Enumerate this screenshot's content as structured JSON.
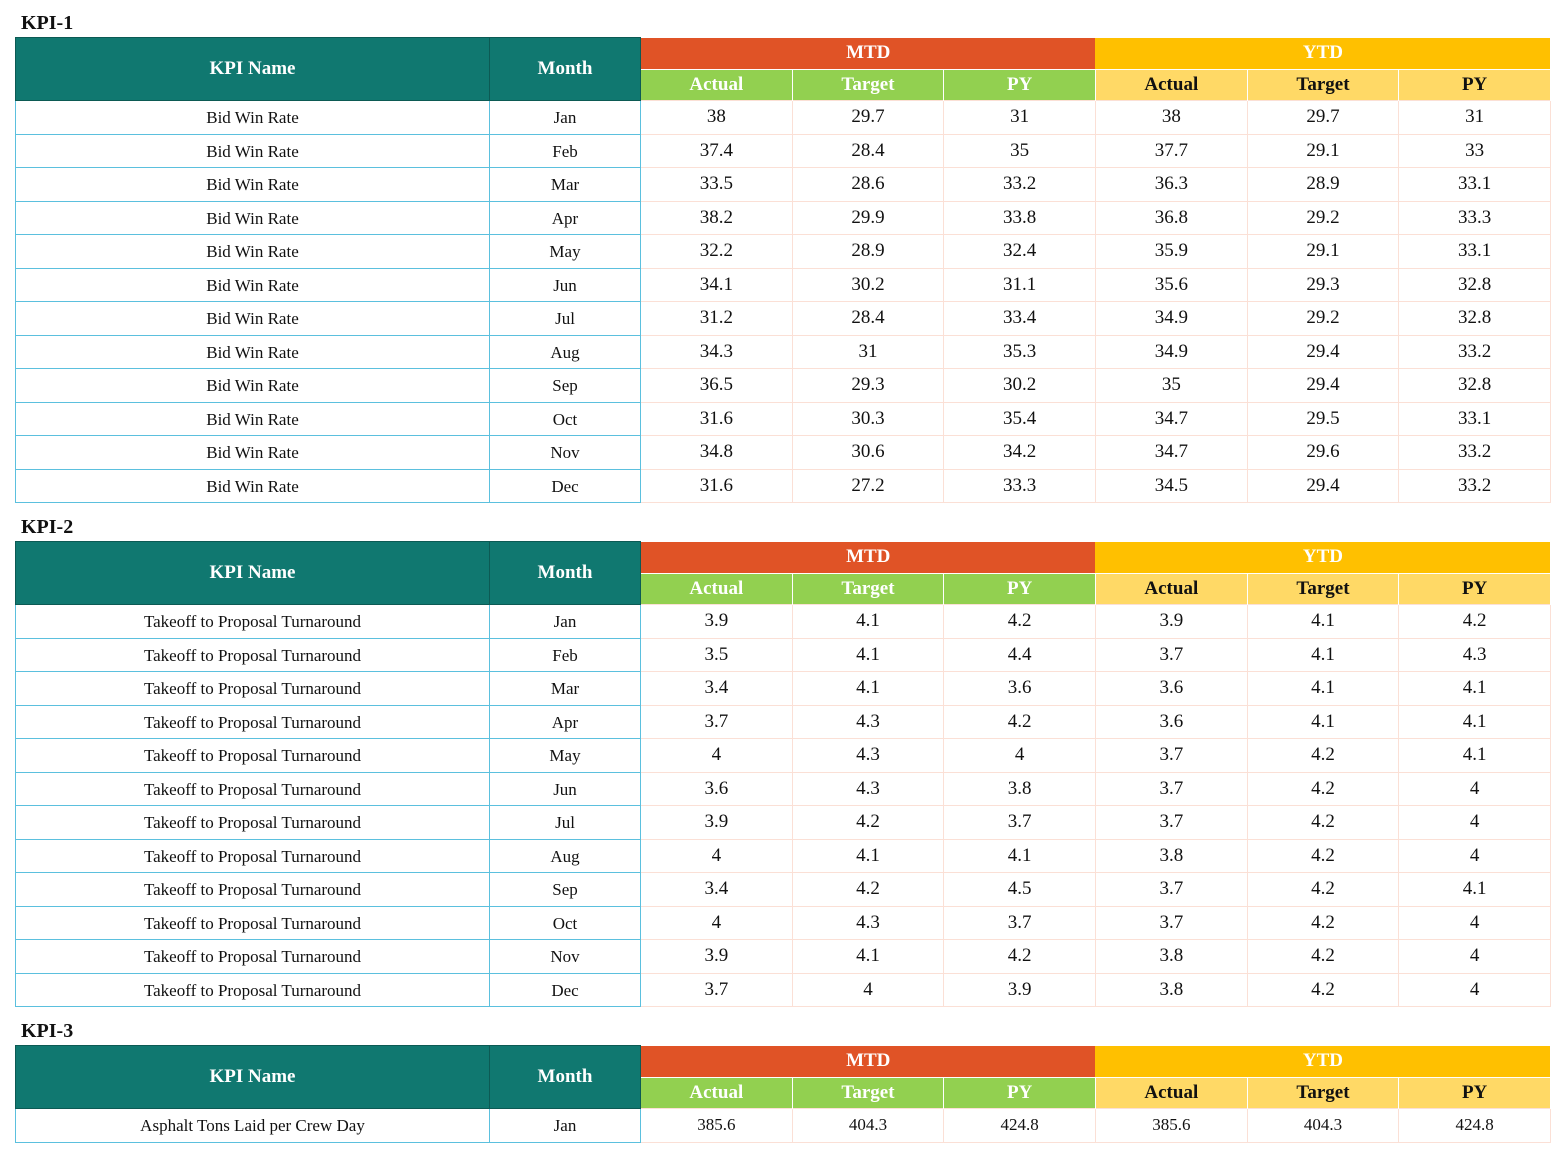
{
  "headers": {
    "kpi_name": "KPI Name",
    "month": "Month",
    "mtd": "MTD",
    "ytd": "YTD",
    "actual": "Actual",
    "target": "Target",
    "py": "PY"
  },
  "kpis": [
    {
      "title": "KPI-1",
      "rows": [
        {
          "name": "Bid Win Rate",
          "month": "Jan",
          "mtd_actual": "38",
          "mtd_target": "29.7",
          "mtd_py": "31",
          "ytd_actual": "38",
          "ytd_target": "29.7",
          "ytd_py": "31"
        },
        {
          "name": "Bid Win Rate",
          "month": "Feb",
          "mtd_actual": "37.4",
          "mtd_target": "28.4",
          "mtd_py": "35",
          "ytd_actual": "37.7",
          "ytd_target": "29.1",
          "ytd_py": "33"
        },
        {
          "name": "Bid Win Rate",
          "month": "Mar",
          "mtd_actual": "33.5",
          "mtd_target": "28.6",
          "mtd_py": "33.2",
          "ytd_actual": "36.3",
          "ytd_target": "28.9",
          "ytd_py": "33.1"
        },
        {
          "name": "Bid Win Rate",
          "month": "Apr",
          "mtd_actual": "38.2",
          "mtd_target": "29.9",
          "mtd_py": "33.8",
          "ytd_actual": "36.8",
          "ytd_target": "29.2",
          "ytd_py": "33.3"
        },
        {
          "name": "Bid Win Rate",
          "month": "May",
          "mtd_actual": "32.2",
          "mtd_target": "28.9",
          "mtd_py": "32.4",
          "ytd_actual": "35.9",
          "ytd_target": "29.1",
          "ytd_py": "33.1"
        },
        {
          "name": "Bid Win Rate",
          "month": "Jun",
          "mtd_actual": "34.1",
          "mtd_target": "30.2",
          "mtd_py": "31.1",
          "ytd_actual": "35.6",
          "ytd_target": "29.3",
          "ytd_py": "32.8"
        },
        {
          "name": "Bid Win Rate",
          "month": "Jul",
          "mtd_actual": "31.2",
          "mtd_target": "28.4",
          "mtd_py": "33.4",
          "ytd_actual": "34.9",
          "ytd_target": "29.2",
          "ytd_py": "32.8"
        },
        {
          "name": "Bid Win Rate",
          "month": "Aug",
          "mtd_actual": "34.3",
          "mtd_target": "31",
          "mtd_py": "35.3",
          "ytd_actual": "34.9",
          "ytd_target": "29.4",
          "ytd_py": "33.2"
        },
        {
          "name": "Bid Win Rate",
          "month": "Sep",
          "mtd_actual": "36.5",
          "mtd_target": "29.3",
          "mtd_py": "30.2",
          "ytd_actual": "35",
          "ytd_target": "29.4",
          "ytd_py": "32.8"
        },
        {
          "name": "Bid Win Rate",
          "month": "Oct",
          "mtd_actual": "31.6",
          "mtd_target": "30.3",
          "mtd_py": "35.4",
          "ytd_actual": "34.7",
          "ytd_target": "29.5",
          "ytd_py": "33.1"
        },
        {
          "name": "Bid Win Rate",
          "month": "Nov",
          "mtd_actual": "34.8",
          "mtd_target": "30.6",
          "mtd_py": "34.2",
          "ytd_actual": "34.7",
          "ytd_target": "29.6",
          "ytd_py": "33.2"
        },
        {
          "name": "Bid Win Rate",
          "month": "Dec",
          "mtd_actual": "31.6",
          "mtd_target": "27.2",
          "mtd_py": "33.3",
          "ytd_actual": "34.5",
          "ytd_target": "29.4",
          "ytd_py": "33.2"
        }
      ]
    },
    {
      "title": "KPI-2",
      "rows": [
        {
          "name": "Takeoff to Proposal Turnaround",
          "month": "Jan",
          "mtd_actual": "3.9",
          "mtd_target": "4.1",
          "mtd_py": "4.2",
          "ytd_actual": "3.9",
          "ytd_target": "4.1",
          "ytd_py": "4.2"
        },
        {
          "name": "Takeoff to Proposal Turnaround",
          "month": "Feb",
          "mtd_actual": "3.5",
          "mtd_target": "4.1",
          "mtd_py": "4.4",
          "ytd_actual": "3.7",
          "ytd_target": "4.1",
          "ytd_py": "4.3"
        },
        {
          "name": "Takeoff to Proposal Turnaround",
          "month": "Mar",
          "mtd_actual": "3.4",
          "mtd_target": "4.1",
          "mtd_py": "3.6",
          "ytd_actual": "3.6",
          "ytd_target": "4.1",
          "ytd_py": "4.1"
        },
        {
          "name": "Takeoff to Proposal Turnaround",
          "month": "Apr",
          "mtd_actual": "3.7",
          "mtd_target": "4.3",
          "mtd_py": "4.2",
          "ytd_actual": "3.6",
          "ytd_target": "4.1",
          "ytd_py": "4.1"
        },
        {
          "name": "Takeoff to Proposal Turnaround",
          "month": "May",
          "mtd_actual": "4",
          "mtd_target": "4.3",
          "mtd_py": "4",
          "ytd_actual": "3.7",
          "ytd_target": "4.2",
          "ytd_py": "4.1"
        },
        {
          "name": "Takeoff to Proposal Turnaround",
          "month": "Jun",
          "mtd_actual": "3.6",
          "mtd_target": "4.3",
          "mtd_py": "3.8",
          "ytd_actual": "3.7",
          "ytd_target": "4.2",
          "ytd_py": "4"
        },
        {
          "name": "Takeoff to Proposal Turnaround",
          "month": "Jul",
          "mtd_actual": "3.9",
          "mtd_target": "4.2",
          "mtd_py": "3.7",
          "ytd_actual": "3.7",
          "ytd_target": "4.2",
          "ytd_py": "4"
        },
        {
          "name": "Takeoff to Proposal Turnaround",
          "month": "Aug",
          "mtd_actual": "4",
          "mtd_target": "4.1",
          "mtd_py": "4.1",
          "ytd_actual": "3.8",
          "ytd_target": "4.2",
          "ytd_py": "4"
        },
        {
          "name": "Takeoff to Proposal Turnaround",
          "month": "Sep",
          "mtd_actual": "3.4",
          "mtd_target": "4.2",
          "mtd_py": "4.5",
          "ytd_actual": "3.7",
          "ytd_target": "4.2",
          "ytd_py": "4.1"
        },
        {
          "name": "Takeoff to Proposal Turnaround",
          "month": "Oct",
          "mtd_actual": "4",
          "mtd_target": "4.3",
          "mtd_py": "3.7",
          "ytd_actual": "3.7",
          "ytd_target": "4.2",
          "ytd_py": "4"
        },
        {
          "name": "Takeoff to Proposal Turnaround",
          "month": "Nov",
          "mtd_actual": "3.9",
          "mtd_target": "4.1",
          "mtd_py": "4.2",
          "ytd_actual": "3.8",
          "ytd_target": "4.2",
          "ytd_py": "4"
        },
        {
          "name": "Takeoff to Proposal Turnaround",
          "month": "Dec",
          "mtd_actual": "3.7",
          "mtd_target": "4",
          "mtd_py": "3.9",
          "ytd_actual": "3.8",
          "ytd_target": "4.2",
          "ytd_py": "4"
        }
      ]
    },
    {
      "title": "KPI-3",
      "rows": [
        {
          "name": "Asphalt Tons Laid per Crew Day",
          "month": "Jan",
          "mtd_actual": "385.6",
          "mtd_target": "404.3",
          "mtd_py": "424.8",
          "ytd_actual": "385.6",
          "ytd_target": "404.3",
          "ytd_py": "424.8"
        }
      ]
    }
  ],
  "colors": {
    "header_teal": "#107870",
    "mtd_orange": "#e05326",
    "ytd_gold": "#ffc000",
    "mtd_sub_green": "#92d050",
    "ytd_sub_yellow": "#ffd966",
    "row_border_blue": "#5bc0de",
    "value_border_peach": "#fbe0d6"
  }
}
